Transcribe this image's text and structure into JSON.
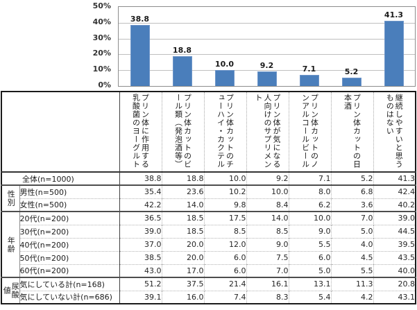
{
  "chart_data": {
    "type": "bar",
    "title": "",
    "xlabel": "",
    "ylabel": "",
    "ylim": [
      0,
      50
    ],
    "grid": true,
    "legend": "none",
    "bar_color": "#4a7ebb",
    "ytick_labels": [
      "0%",
      "10%",
      "20%",
      "30%",
      "40%",
      "50%"
    ],
    "categories": [
      "プリン体に作用する乳酸菌のヨーグルト",
      "プリン体カットのビール類（発泡酒等）",
      "プリン体カットのチューハイ・カクテル",
      "プリン体が気になる人向けのサプリメント",
      "プリン体カットのノンアルコールビール",
      "プリン体カットの日本酒",
      "継続しやすいと思うものはない"
    ],
    "values": [
      38.8,
      18.8,
      10.0,
      9.2,
      7.1,
      5.2,
      41.3
    ]
  },
  "table": {
    "corner_label": "",
    "columns": [
      "プリン体に作用する乳酸菌のヨーグルト",
      "プリン体カットのビール類（発泡酒等）",
      "プリン体カットのチューハイ・カクテル",
      "プリン体が気になる人向けのサプリメント",
      "プリン体カットのノンアルコールビール",
      "プリン体カットの日本酒",
      "継続しやすいと思うものはない"
    ],
    "groups": [
      {
        "label": "",
        "rows": [
          {
            "label": "全体(n=1000)",
            "values": [
              38.8,
              18.8,
              10.0,
              9.2,
              7.1,
              5.2,
              41.3
            ]
          }
        ]
      },
      {
        "label": "性別",
        "rows": [
          {
            "label": "男性(n=500)",
            "values": [
              35.4,
              23.6,
              10.2,
              10.0,
              8.0,
              6.8,
              42.4
            ]
          },
          {
            "label": "女性(n=500)",
            "values": [
              42.2,
              14.0,
              9.8,
              8.4,
              6.2,
              3.6,
              40.2
            ]
          }
        ]
      },
      {
        "label": "年齢",
        "rows": [
          {
            "label": "20代(n=200)",
            "values": [
              36.5,
              18.5,
              17.5,
              14.0,
              10.0,
              7.0,
              39.0
            ]
          },
          {
            "label": "30代(n=200)",
            "values": [
              39.0,
              18.5,
              8.5,
              8.5,
              9.0,
              5.0,
              44.5
            ]
          },
          {
            "label": "40代(n=200)",
            "values": [
              37.0,
              20.0,
              12.0,
              9.0,
              5.5,
              4.0,
              39.5
            ]
          },
          {
            "label": "50代(n=200)",
            "values": [
              38.5,
              20.0,
              6.0,
              7.5,
              6.0,
              4.5,
              43.5
            ]
          },
          {
            "label": "60代(n=200)",
            "values": [
              43.0,
              17.0,
              6.0,
              7.0,
              5.0,
              5.5,
              40.0
            ]
          }
        ]
      },
      {
        "label": "尿酸値",
        "rows": [
          {
            "label": "気にしている計(n=168)",
            "values": [
              51.2,
              37.5,
              21.4,
              16.1,
              13.1,
              11.3,
              20.8
            ]
          },
          {
            "label": "気にしていない計(n=686)",
            "values": [
              39.1,
              16.0,
              7.4,
              8.3,
              5.4,
              4.2,
              43.1
            ]
          }
        ]
      }
    ]
  }
}
